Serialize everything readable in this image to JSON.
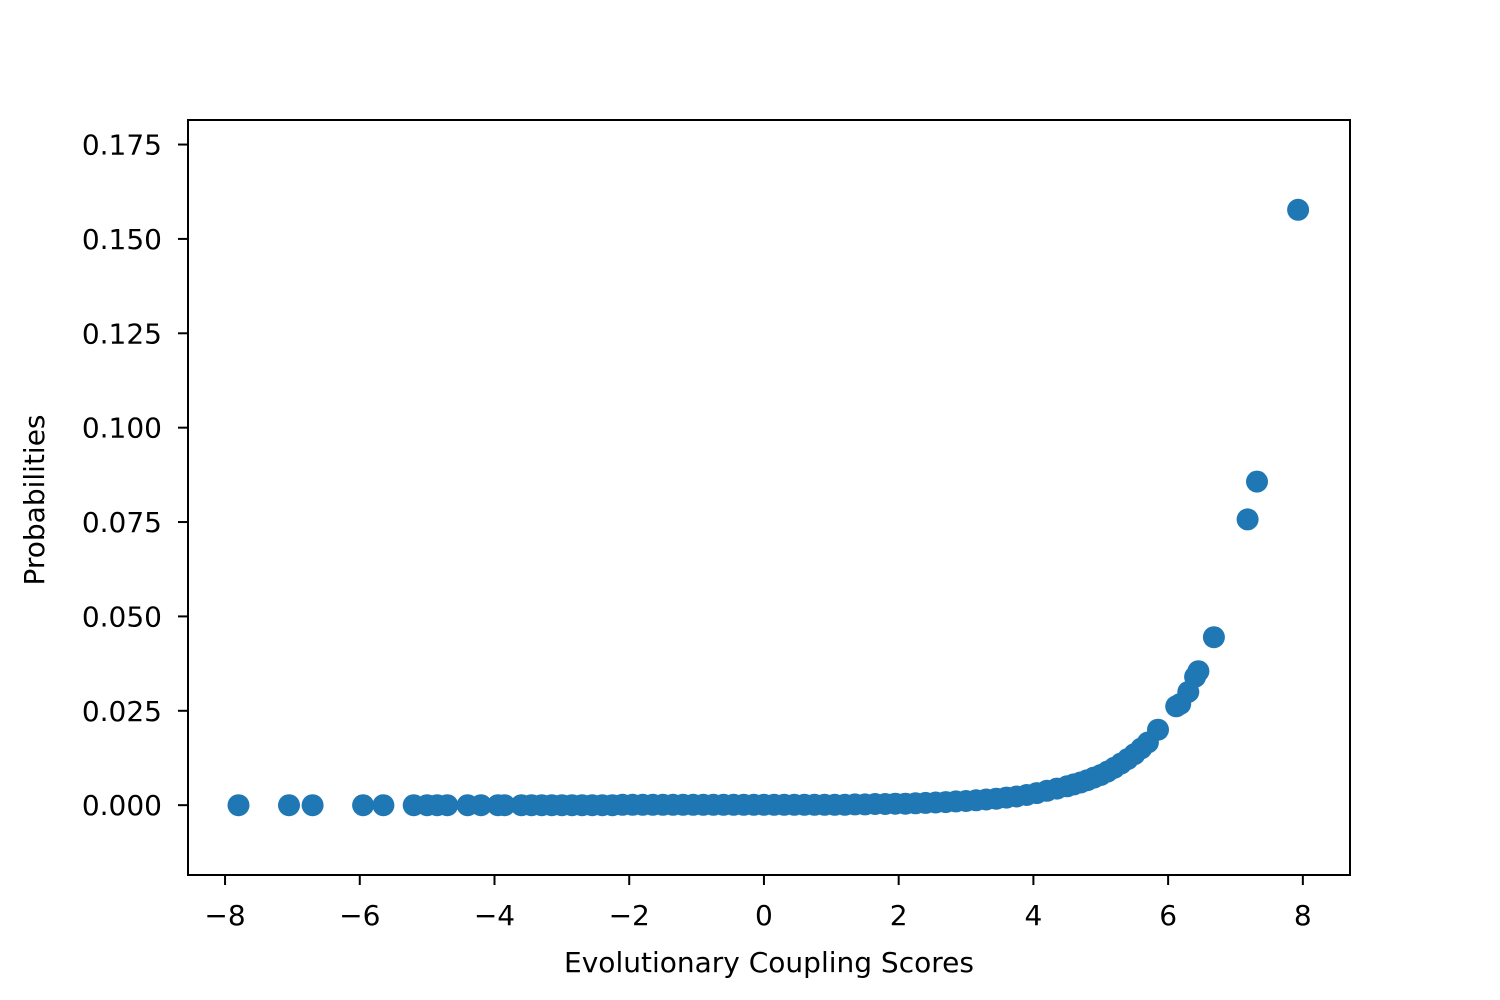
{
  "chart_data": {
    "type": "scatter",
    "title": "",
    "xlabel": "Evolutionary Coupling Scores",
    "ylabel": "Probabilities",
    "xlim": [
      -8.55,
      8.7
    ],
    "ylim": [
      -0.0185,
      0.1815
    ],
    "xticks": [
      -8,
      -6,
      -4,
      -2,
      0,
      2,
      4,
      6,
      8
    ],
    "xtick_labels": [
      "−8",
      "−6",
      "−4",
      "−2",
      "0",
      "2",
      "4",
      "6",
      "8"
    ],
    "yticks": [
      0.0,
      0.025,
      0.05,
      0.075,
      0.1,
      0.125,
      0.15,
      0.175
    ],
    "ytick_labels": [
      "0.000",
      "0.025",
      "0.050",
      "0.075",
      "0.100",
      "0.125",
      "0.150",
      "0.175"
    ],
    "grid": false,
    "marker_color": "#1f77b4",
    "series": [
      {
        "x": [
          -7.8,
          -7.05,
          -6.7,
          -5.95,
          -5.65,
          -5.2,
          -5.0,
          -4.85,
          -4.7,
          -4.4,
          -4.2,
          -3.95,
          -3.85,
          -3.6,
          -3.45,
          -3.3,
          -3.15,
          -3.0,
          -2.85,
          -2.7,
          -2.55,
          -2.4,
          -2.25,
          -2.1,
          -1.95,
          -1.8,
          -1.65,
          -1.5,
          -1.35,
          -1.2,
          -1.05,
          -0.9,
          -0.75,
          -0.6,
          -0.45,
          -0.3,
          -0.15,
          0.0,
          0.15,
          0.3,
          0.45,
          0.6,
          0.75,
          0.9,
          1.05,
          1.2,
          1.35,
          1.5,
          1.65,
          1.8,
          1.95,
          2.1,
          2.25,
          2.4,
          2.55,
          2.7,
          2.85,
          3.0,
          3.15,
          3.3,
          3.45,
          3.6,
          3.75,
          3.9,
          4.05,
          4.2,
          4.35,
          4.5,
          4.6,
          4.7,
          4.8,
          4.9,
          5.0,
          5.1,
          5.2,
          5.3,
          5.4,
          5.5,
          5.6,
          5.7,
          5.85,
          6.12,
          6.18,
          6.3,
          6.4,
          6.45,
          6.68,
          7.18,
          7.32,
          7.93
        ],
        "y": [
          0.0,
          0.0,
          0.0,
          0.0,
          0.0,
          0.0,
          0.0,
          0.0,
          0.0,
          0.0,
          0.0,
          0.0,
          0.0,
          0.0,
          0.0,
          0.0,
          0.0,
          0.0,
          0.0,
          0.0,
          0.0,
          0.0,
          0.0,
          0.0001,
          0.0001,
          0.0001,
          0.0001,
          0.0001,
          0.0001,
          0.0001,
          0.0001,
          0.0001,
          0.0001,
          0.0001,
          0.0001,
          0.0001,
          0.0001,
          0.0001,
          0.0001,
          0.0001,
          0.0001,
          0.0001,
          0.0001,
          0.0001,
          0.0001,
          0.0001,
          0.0002,
          0.0002,
          0.0003,
          0.0003,
          0.0004,
          0.0004,
          0.0005,
          0.0006,
          0.0007,
          0.0008,
          0.001,
          0.0011,
          0.0013,
          0.0015,
          0.0017,
          0.002,
          0.0023,
          0.0027,
          0.0032,
          0.0038,
          0.0044,
          0.005,
          0.0055,
          0.006,
          0.0066,
          0.0073,
          0.008,
          0.0089,
          0.0099,
          0.011,
          0.0122,
          0.0135,
          0.015,
          0.0166,
          0.02,
          0.0262,
          0.0268,
          0.03,
          0.034,
          0.0355,
          0.0445,
          0.0757,
          0.0857,
          0.1577
        ]
      }
    ]
  }
}
